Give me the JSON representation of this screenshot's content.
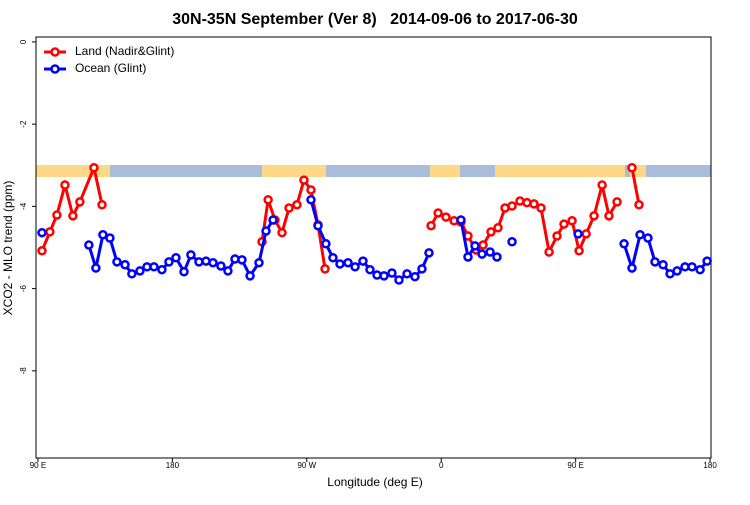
{
  "chart_data": {
    "type": "line",
    "title": "30N-35N September (Ver 8)   2014-09-06 to 2017-06-30",
    "xlabel": "Longitude (deg E)",
    "ylabel": "XCO2 - MLO trend (ppm)",
    "xlim": [
      88.7,
      540.6
    ],
    "ylim": [
      -10.12,
      0.12
    ],
    "xticks": [
      {
        "value": 90,
        "label": "90 E"
      },
      {
        "value": 180,
        "label": "180"
      },
      {
        "value": 270,
        "label": "90 W"
      },
      {
        "value": 360,
        "label": "0"
      },
      {
        "value": 450,
        "label": "90 E"
      },
      {
        "value": 540,
        "label": "180"
      }
    ],
    "yticks": [
      0,
      -2,
      -4,
      -6,
      -8
    ],
    "legend": "top-left",
    "series": [
      {
        "name": "Land (Nadir&Glint)",
        "color": "#ff0000",
        "x": [
          92.7,
          98.0,
          102.7,
          108.1,
          113.4,
          118.1,
          127.5,
          132.9,
          null,
          240.0,
          244.1,
          248.7,
          253.4,
          258.1,
          263.4,
          268.1,
          272.8,
          277.5,
          282.2,
          null,
          353.2,
          357.9,
          363.2,
          368.6,
          373.2,
          377.9,
          383.3,
          388.0,
          393.3,
          398.0,
          402.7,
          407.4,
          412.7,
          417.4,
          422.1,
          426.8,
          432.2,
          437.5,
          442.2,
          447.6,
          452.3,
          457.0,
          462.3,
          467.7,
          472.3,
          477.7,
          null,
          487.7,
          492.4
        ],
        "values": [
          -5.08,
          -4.62,
          -4.21,
          -3.48,
          -4.23,
          -3.89,
          -3.06,
          -3.96,
          null,
          -4.86,
          -3.84,
          -4.33,
          -4.64,
          -4.04,
          -3.96,
          -3.36,
          -3.6,
          -4.45,
          -5.52,
          null,
          -4.47,
          -4.16,
          -4.26,
          -4.35,
          -4.38,
          -4.72,
          -5.06,
          -4.94,
          -4.62,
          -4.52,
          -4.04,
          -3.99,
          -3.87,
          -3.91,
          -3.94,
          -4.04,
          -5.11,
          -4.72,
          -4.43,
          -4.35,
          -5.08,
          -4.67,
          -4.23,
          -3.48,
          -4.23,
          -3.89,
          null,
          -3.06,
          -3.96
        ]
      },
      {
        "name": "Ocean (Glint)",
        "color": "#0000ff",
        "x": [
          92.7,
          null,
          124.1,
          128.8,
          133.5,
          138.2,
          142.9,
          148.3,
          152.9,
          158.3,
          163.0,
          167.7,
          173.0,
          177.7,
          182.4,
          187.8,
          192.4,
          197.8,
          202.5,
          207.2,
          212.5,
          217.2,
          221.9,
          226.6,
          232.0,
          238.0,
          242.7,
          247.4,
          null,
          272.8,
          277.5,
          282.8,
          287.5,
          292.2,
          297.6,
          302.3,
          307.6,
          312.3,
          317.0,
          321.7,
          327.0,
          331.7,
          337.1,
          342.4,
          347.1,
          351.8,
          null,
          373.2,
          377.9,
          382.6,
          387.3,
          392.7,
          397.3,
          null,
          407.4,
          null,
          451.6,
          null,
          482.4,
          487.7,
          493.1,
          498.4,
          503.1,
          508.5,
          513.2,
          517.9,
          523.2,
          527.9,
          533.3,
          538.0
        ],
        "values": [
          -4.64,
          null,
          -4.94,
          -5.5,
          -4.69,
          -4.77,
          -5.35,
          -5.42,
          -5.64,
          -5.57,
          -5.47,
          -5.47,
          -5.54,
          -5.35,
          -5.25,
          -5.59,
          -5.18,
          -5.35,
          -5.33,
          -5.37,
          -5.45,
          -5.57,
          -5.28,
          -5.3,
          -5.69,
          -5.37,
          -4.6,
          -4.33,
          null,
          -3.84,
          -4.47,
          -4.91,
          -5.25,
          -5.4,
          -5.37,
          -5.47,
          -5.33,
          -5.54,
          -5.67,
          -5.69,
          -5.62,
          -5.79,
          -5.64,
          -5.71,
          -5.52,
          -5.13,
          null,
          -4.33,
          -5.23,
          -4.96,
          -5.16,
          -5.11,
          -5.23,
          null,
          -4.86,
          null,
          -4.67,
          null,
          -4.91,
          -5.5,
          -4.69,
          -4.77,
          -5.35,
          -5.42,
          -5.64,
          -5.57,
          -5.47,
          -5.47,
          -5.54,
          -5.33
        ]
      }
    ]
  }
}
